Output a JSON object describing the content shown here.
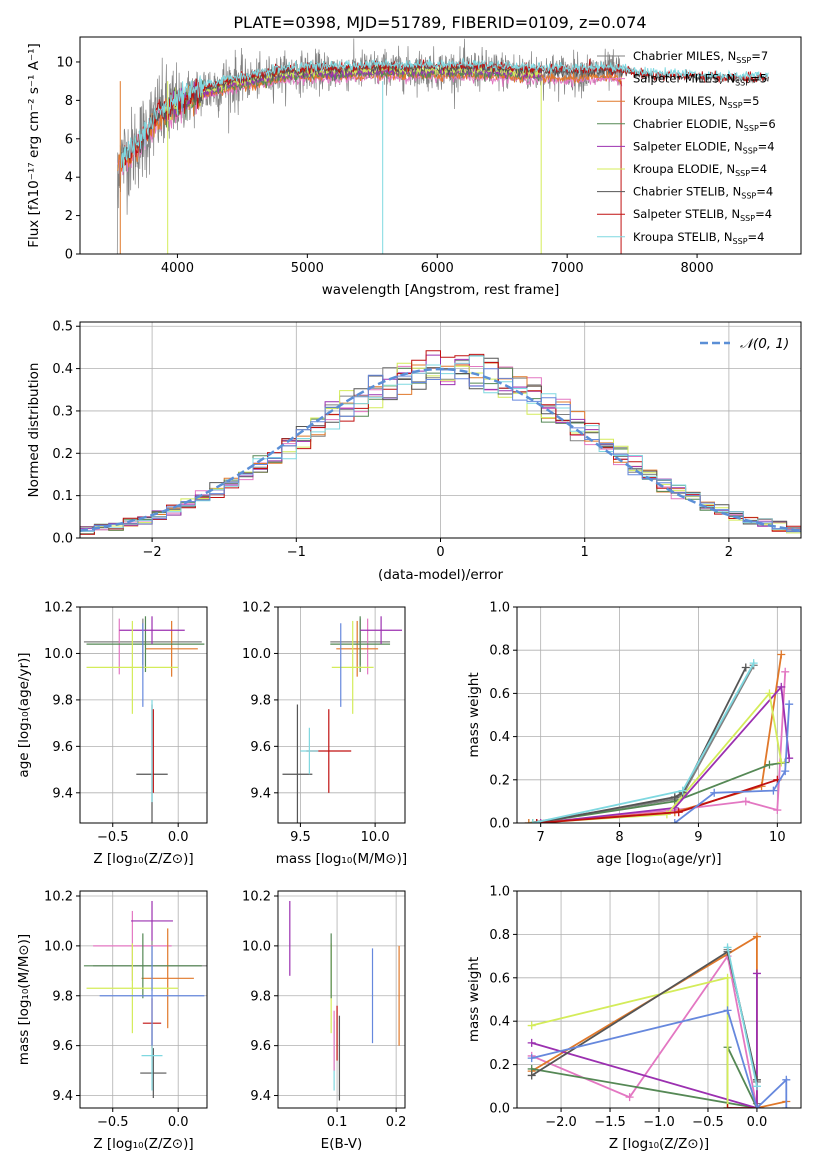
{
  "colors": {
    "Chabrier MILES": "#808080",
    "Salpeter MILES": "#e377c2",
    "Kroupa MILES": "#e0782a",
    "Chabrier ELODIE": "#558855",
    "Salpeter ELODIE": "#9b30b0",
    "Kroupa ELODIE": "#d4ec5a",
    "Chabrier STELIB": "#555555",
    "Salpeter STELIB": "#c01010",
    "Kroupa STELIB": "#7fd8e0",
    "gauss": "#5b8fd6",
    "extra_blue": "#6688dd"
  },
  "chart_data": [
    {
      "id": "spectrum",
      "type": "line",
      "title": "PLATE=0398, MJD=51789, FIBERID=0109, z=0.074",
      "xlabel": "wavelength [Angstrom, rest frame]",
      "ylabel": "Flux [fλ10⁻¹⁷ erg cm⁻² s⁻¹ A⁻¹]",
      "xlim": [
        3250,
        8800
      ],
      "ylim": [
        0,
        11.3
      ],
      "xticks": [
        4000,
        5000,
        6000,
        7000,
        8000
      ],
      "yticks": [
        0,
        2,
        4,
        6,
        8,
        10
      ],
      "legend_position": "upper-right",
      "legend": [
        {
          "label": "Chabrier MILES, N",
          "sub": "SSP",
          "eq": "=7",
          "color_key": "Chabrier MILES"
        },
        {
          "label": "Salpeter MILES, N",
          "sub": "SSP",
          "eq": "=5",
          "color_key": "Salpeter MILES"
        },
        {
          "label": "Kroupa MILES, N",
          "sub": "SSP",
          "eq": "=5",
          "color_key": "Kroupa MILES"
        },
        {
          "label": "Chabrier ELODIE, N",
          "sub": "SSP",
          "eq": "=6",
          "color_key": "Chabrier ELODIE"
        },
        {
          "label": "Salpeter ELODIE, N",
          "sub": "SSP",
          "eq": "=4",
          "color_key": "Salpeter ELODIE"
        },
        {
          "label": "Kroupa ELODIE, N",
          "sub": "SSP",
          "eq": "=4",
          "color_key": "Kroupa ELODIE"
        },
        {
          "label": "Chabrier STELIB, N",
          "sub": "SSP",
          "eq": "=4",
          "color_key": "Chabrier STELIB"
        },
        {
          "label": "Salpeter STELIB, N",
          "sub": "SSP",
          "eq": "=4",
          "color_key": "Salpeter STELIB"
        },
        {
          "label": "Kroupa STELIB, N",
          "sub": "SSP",
          "eq": "=4",
          "color_key": "Kroupa STELIB"
        }
      ],
      "continuum_points": [
        [
          3550,
          4.8
        ],
        [
          3650,
          5.3
        ],
        [
          3750,
          6.2
        ],
        [
          3850,
          7.2
        ],
        [
          3950,
          7.5
        ],
        [
          4050,
          8.0
        ],
        [
          4200,
          8.5
        ],
        [
          4400,
          8.9
        ],
        [
          4600,
          9.1
        ],
        [
          4800,
          9.4
        ],
        [
          5000,
          9.5
        ],
        [
          5200,
          9.5
        ],
        [
          5500,
          9.6
        ],
        [
          5800,
          9.6
        ],
        [
          6000,
          9.6
        ],
        [
          6300,
          9.6
        ],
        [
          6600,
          9.5
        ],
        [
          7000,
          9.4
        ],
        [
          7300,
          9.5
        ],
        [
          7420,
          9.4
        ],
        [
          7600,
          9.2
        ],
        [
          8000,
          9.1
        ],
        [
          8300,
          9.0
        ],
        [
          8500,
          9.0
        ]
      ]
    },
    {
      "id": "residuals",
      "type": "histogram",
      "xlabel": "(data-model)/error",
      "ylabel": "Normed distribution",
      "xlim": [
        -2.5,
        2.5
      ],
      "ylim": [
        0,
        0.51
      ],
      "xticks": [
        -2,
        -1,
        0,
        1,
        2
      ],
      "yticks": [
        0.0,
        0.1,
        0.2,
        0.3,
        0.4,
        0.5
      ],
      "bin_width": 0.1,
      "legend_position": "upper-right",
      "legend": [
        {
          "label": "𝒩(0, 1)",
          "color_key": "gauss"
        }
      ]
    },
    {
      "id": "age_vs_Z",
      "type": "errorbar",
      "xlabel": "Z [log₁₀(Z/Z⊙)]",
      "ylabel": "age  [log₁₀(age/yr)]",
      "xlim": [
        -0.75,
        0.22
      ],
      "ylim": [
        9.27,
        10.2
      ],
      "xticks": [
        -0.5,
        0.0
      ],
      "xtick_labels": [
        "−0.5",
        "0.0"
      ],
      "yticks": [
        9.4,
        9.6,
        9.8,
        10.0,
        10.2
      ],
      "series": [
        {
          "color_key": "Chabrier MILES",
          "x": -0.27,
          "y": 10.05,
          "xerr": 0.45,
          "yerr": 0.1
        },
        {
          "color_key": "Salpeter MILES",
          "x": -0.45,
          "y": 10.03,
          "xerr": 0.0,
          "yerr": 0.12
        },
        {
          "color_key": "Kroupa MILES",
          "x": -0.05,
          "y": 10.02,
          "xerr": 0.2,
          "yerr": 0.12
        },
        {
          "color_key": "Chabrier ELODIE",
          "x": -0.25,
          "y": 10.04,
          "xerr": 0.45,
          "yerr": 0.12
        },
        {
          "color_key": "Salpeter ELODIE",
          "x": -0.2,
          "y": 10.1,
          "xerr": 0.25,
          "yerr": 0.06
        },
        {
          "color_key": "Kroupa ELODIE",
          "x": -0.35,
          "y": 9.94,
          "xerr": 0.35,
          "yerr": 0.2
        },
        {
          "color_key": "Chabrier STELIB",
          "x": -0.2,
          "y": 9.48,
          "xerr": 0.12,
          "yerr": 0.3
        },
        {
          "color_key": "Salpeter STELIB",
          "x": -0.19,
          "y": 9.58,
          "xerr": 0.0,
          "yerr": 0.18
        },
        {
          "color_key": "Kroupa STELIB",
          "x": -0.2,
          "y": 9.58,
          "xerr": 0.0,
          "yerr": 0.22
        },
        {
          "color_key": "extra_blue",
          "x": -0.27,
          "y": 9.95,
          "xerr": 0.0,
          "yerr": 0.18
        }
      ]
    },
    {
      "id": "age_vs_mass",
      "type": "errorbar",
      "xlabel": "mass [log₁₀(M/M⊙)]",
      "ylabel": "",
      "xlim": [
        9.35,
        10.2
      ],
      "ylim": [
        9.27,
        10.2
      ],
      "xticks": [
        9.5,
        10.0
      ],
      "xtick_labels": [
        "9.5",
        "10.0"
      ],
      "yticks": [
        9.4,
        9.6,
        9.8,
        10.0,
        10.2
      ],
      "series": [
        {
          "color_key": "Chabrier MILES",
          "x": 9.9,
          "y": 10.05,
          "xerr": 0.2,
          "yerr": 0.1
        },
        {
          "color_key": "Salpeter MILES",
          "x": 9.95,
          "y": 10.03,
          "xerr": 0.0,
          "yerr": 0.12
        },
        {
          "color_key": "Kroupa MILES",
          "x": 9.88,
          "y": 10.02,
          "xerr": 0.14,
          "yerr": 0.12
        },
        {
          "color_key": "Chabrier ELODIE",
          "x": 9.9,
          "y": 10.04,
          "xerr": 0.2,
          "yerr": 0.12
        },
        {
          "color_key": "Salpeter ELODIE",
          "x": 10.04,
          "y": 10.1,
          "xerr": 0.14,
          "yerr": 0.06
        },
        {
          "color_key": "Kroupa ELODIE",
          "x": 9.85,
          "y": 9.94,
          "xerr": 0.14,
          "yerr": 0.2
        },
        {
          "color_key": "Chabrier STELIB",
          "x": 9.48,
          "y": 9.48,
          "xerr": 0.1,
          "yerr": 0.3
        },
        {
          "color_key": "Salpeter STELIB",
          "x": 9.69,
          "y": 9.58,
          "xerr": 0.15,
          "yerr": 0.18
        },
        {
          "color_key": "Kroupa STELIB",
          "x": 9.56,
          "y": 9.58,
          "xerr": 0.06,
          "yerr": 0.1
        },
        {
          "color_key": "extra_blue",
          "x": 9.77,
          "y": 9.95,
          "xerr": 0.0,
          "yerr": 0.18
        }
      ]
    },
    {
      "id": "mass_weight_vs_age",
      "type": "line",
      "xlabel": "age  [log₁₀(age/yr)]",
      "ylabel": "mass weight",
      "xlim": [
        6.7,
        10.3
      ],
      "ylim": [
        0,
        1
      ],
      "xticks": [
        7,
        8,
        9,
        10
      ],
      "yticks": [
        0.0,
        0.2,
        0.4,
        0.6,
        0.8,
        1.0
      ],
      "series": [
        {
          "color_key": "Chabrier MILES",
          "points": [
            [
              6.85,
              0.0
            ],
            [
              8.7,
              0.11
            ],
            [
              8.8,
              0.13
            ],
            [
              9.7,
              0.73
            ]
          ]
        },
        {
          "color_key": "Salpeter MILES",
          "points": [
            [
              6.9,
              0.0
            ],
            [
              8.7,
              0.06
            ],
            [
              9.6,
              0.1
            ],
            [
              10.0,
              0.06
            ],
            [
              10.1,
              0.7
            ]
          ]
        },
        {
          "color_key": "Kroupa MILES",
          "points": [
            [
              6.85,
              0.0
            ],
            [
              8.7,
              0.05
            ],
            [
              9.8,
              0.17
            ],
            [
              10.05,
              0.78
            ]
          ]
        },
        {
          "color_key": "Chabrier ELODIE",
          "points": [
            [
              6.9,
              0.0
            ],
            [
              8.7,
              0.1
            ],
            [
              9.9,
              0.27
            ],
            [
              10.1,
              0.28
            ]
          ]
        },
        {
          "color_key": "Salpeter ELODIE",
          "points": [
            [
              7.0,
              0.0
            ],
            [
              8.7,
              0.07
            ],
            [
              10.05,
              0.63
            ],
            [
              10.15,
              0.3
            ]
          ]
        },
        {
          "color_key": "Kroupa ELODIE",
          "points": [
            [
              6.9,
              0.0
            ],
            [
              8.6,
              0.04
            ],
            [
              9.9,
              0.6
            ],
            [
              10.05,
              0.28
            ]
          ]
        },
        {
          "color_key": "Chabrier STELIB",
          "points": [
            [
              6.95,
              0.0
            ],
            [
              8.7,
              0.12
            ],
            [
              8.8,
              0.14
            ],
            [
              9.6,
              0.72
            ]
          ]
        },
        {
          "color_key": "Salpeter STELIB",
          "points": [
            [
              6.95,
              0.0
            ],
            [
              8.75,
              0.05
            ],
            [
              10.0,
              0.2
            ]
          ]
        },
        {
          "color_key": "Kroupa STELIB",
          "points": [
            [
              6.9,
              0.0
            ],
            [
              8.8,
              0.15
            ],
            [
              9.7,
              0.74
            ]
          ]
        },
        {
          "color_key": "extra_blue",
          "points": [
            [
              8.7,
              0.0
            ],
            [
              9.2,
              0.14
            ],
            [
              9.95,
              0.15
            ],
            [
              10.1,
              0.24
            ],
            [
              10.15,
              0.55
            ]
          ]
        }
      ]
    },
    {
      "id": "mass_vs_Z",
      "type": "errorbar",
      "xlabel": "Z [log₁₀(Z/Z⊙)]",
      "ylabel": "mass [log₁₀(M/M⊙)]",
      "xlim": [
        -0.75,
        0.22
      ],
      "ylim": [
        9.35,
        10.22
      ],
      "xticks": [
        -0.5,
        0.0
      ],
      "xtick_labels": [
        "−0.5",
        "0.0"
      ],
      "yticks": [
        9.4,
        9.6,
        9.8,
        10.0,
        10.2
      ],
      "series": [
        {
          "color_key": "Chabrier MILES",
          "x": -0.2,
          "y": 9.92,
          "xerr": 0.45,
          "yerr": 0.1
        },
        {
          "color_key": "Salpeter MILES",
          "x": -0.35,
          "y": 10.0,
          "xerr": 0.3,
          "yerr": 0.14
        },
        {
          "color_key": "Kroupa MILES",
          "x": -0.08,
          "y": 9.87,
          "xerr": 0.2,
          "yerr": 0.2
        },
        {
          "color_key": "Chabrier ELODIE",
          "x": -0.27,
          "y": 9.92,
          "xerr": 0.45,
          "yerr": 0.13
        },
        {
          "color_key": "Salpeter ELODIE",
          "x": -0.2,
          "y": 10.1,
          "xerr": 0.16,
          "yerr": 0.08
        },
        {
          "color_key": "Kroupa ELODIE",
          "x": -0.35,
          "y": 9.83,
          "xerr": 0.35,
          "yerr": 0.18
        },
        {
          "color_key": "Chabrier STELIB",
          "x": -0.19,
          "y": 9.49,
          "xerr": 0.1,
          "yerr": 0.1
        },
        {
          "color_key": "Salpeter STELIB",
          "x": -0.2,
          "y": 9.69,
          "xerr": 0.07,
          "yerr": 0.1
        },
        {
          "color_key": "Kroupa STELIB",
          "x": -0.2,
          "y": 9.56,
          "xerr": 0.08,
          "yerr": 0.14
        },
        {
          "color_key": "extra_blue",
          "x": -0.2,
          "y": 9.8,
          "xerr": 0.4,
          "yerr": 0.2
        }
      ]
    },
    {
      "id": "mass_vs_ebv",
      "type": "errorbar",
      "xlabel": "E(B-V)",
      "ylabel": "",
      "xlim": [
        0.0,
        0.215
      ],
      "ylim": [
        9.35,
        10.22
      ],
      "xticks": [
        0.1,
        0.2
      ],
      "xtick_labels": [
        "0.1",
        "0.2"
      ],
      "yticks": [
        9.4,
        9.6,
        9.8,
        10.0,
        10.2
      ],
      "series": [
        {
          "color_key": "Salpeter ELODIE",
          "x": 0.02,
          "y": 10.03,
          "xerr": 0.0,
          "yerr": 0.15
        },
        {
          "color_key": "Kroupa ELODIE",
          "x": 0.09,
          "y": 9.83,
          "xerr": 0.0,
          "yerr": 0.18
        },
        {
          "color_key": "Chabrier ELODIE",
          "x": 0.09,
          "y": 9.92,
          "xerr": 0.0,
          "yerr": 0.13
        },
        {
          "color_key": "Kroupa STELIB",
          "x": 0.095,
          "y": 9.56,
          "xerr": 0.0,
          "yerr": 0.14
        },
        {
          "color_key": "Salpeter MILES",
          "x": 0.095,
          "y": 9.62,
          "xerr": 0.0,
          "yerr": 0.12
        },
        {
          "color_key": "Salpeter STELIB",
          "x": 0.1,
          "y": 9.65,
          "xerr": 0.0,
          "yerr": 0.11
        },
        {
          "color_key": "Chabrier STELIB",
          "x": 0.104,
          "y": 9.55,
          "xerr": 0.0,
          "yerr": 0.17
        },
        {
          "color_key": "extra_blue",
          "x": 0.16,
          "y": 9.8,
          "xerr": 0.0,
          "yerr": 0.19
        },
        {
          "color_key": "Kroupa MILES",
          "x": 0.205,
          "y": 9.8,
          "xerr": 0.0,
          "yerr": 0.2
        }
      ]
    },
    {
      "id": "mass_weight_vs_Z",
      "type": "line",
      "xlabel": "Z [log₁₀(Z/Z⊙)]",
      "ylabel": "mass weight",
      "xlim": [
        -2.45,
        0.45
      ],
      "ylim": [
        0,
        1
      ],
      "xticks": [
        -2.0,
        -1.5,
        -1.0,
        -0.5,
        0.0
      ],
      "xtick_labels": [
        "−2.0",
        "−1.5",
        "−1.0",
        "−0.5",
        "0.0"
      ],
      "yticks": [
        0.0,
        0.2,
        0.4,
        0.6,
        0.8,
        1.0
      ],
      "series": [
        {
          "color_key": "Chabrier MILES",
          "points": [
            [
              -0.3,
              0.73
            ],
            [
              0.0,
              0.12
            ],
            [
              0.0,
              0.02
            ]
          ]
        },
        {
          "color_key": "Salpeter MILES",
          "points": [
            [
              -2.3,
              0.24
            ],
            [
              -1.3,
              0.05
            ],
            [
              -0.3,
              0.7
            ],
            [
              0.0,
              0.0
            ]
          ]
        },
        {
          "color_key": "Kroupa MILES",
          "points": [
            [
              -2.3,
              0.17
            ],
            [
              0.0,
              0.79
            ],
            [
              0.0,
              0.0
            ],
            [
              0.3,
              0.03
            ]
          ]
        },
        {
          "color_key": "Chabrier ELODIE",
          "points": [
            [
              -2.3,
              0.18
            ],
            [
              0.0,
              0.0
            ],
            [
              -0.3,
              0.28
            ],
            [
              -0.3,
              0.0
            ]
          ]
        },
        {
          "color_key": "Salpeter ELODIE",
          "points": [
            [
              -2.3,
              0.3
            ],
            [
              0.0,
              0.0
            ],
            [
              0.0,
              0.62
            ],
            [
              0.0,
              0.0
            ]
          ]
        },
        {
          "color_key": "Kroupa ELODIE",
          "points": [
            [
              -2.3,
              0.38
            ],
            [
              -0.3,
              0.6
            ],
            [
              -0.3,
              0.0
            ]
          ]
        },
        {
          "color_key": "Chabrier STELIB",
          "points": [
            [
              -2.3,
              0.15
            ],
            [
              -0.3,
              0.72
            ],
            [
              0.0,
              0.13
            ]
          ]
        },
        {
          "color_key": "Salpeter STELIB",
          "points": [
            [
              -0.3,
              0.0
            ],
            [
              0.0,
              0.0
            ]
          ]
        },
        {
          "color_key": "Kroupa STELIB",
          "points": [
            [
              -0.3,
              0.74
            ],
            [
              0.0,
              0.1
            ]
          ]
        },
        {
          "color_key": "extra_blue",
          "points": [
            [
              -2.3,
              0.23
            ],
            [
              -0.3,
              0.45
            ],
            [
              0.0,
              0.0
            ],
            [
              0.3,
              0.13
            ],
            [
              0.3,
              0.0
            ]
          ]
        }
      ]
    }
  ]
}
